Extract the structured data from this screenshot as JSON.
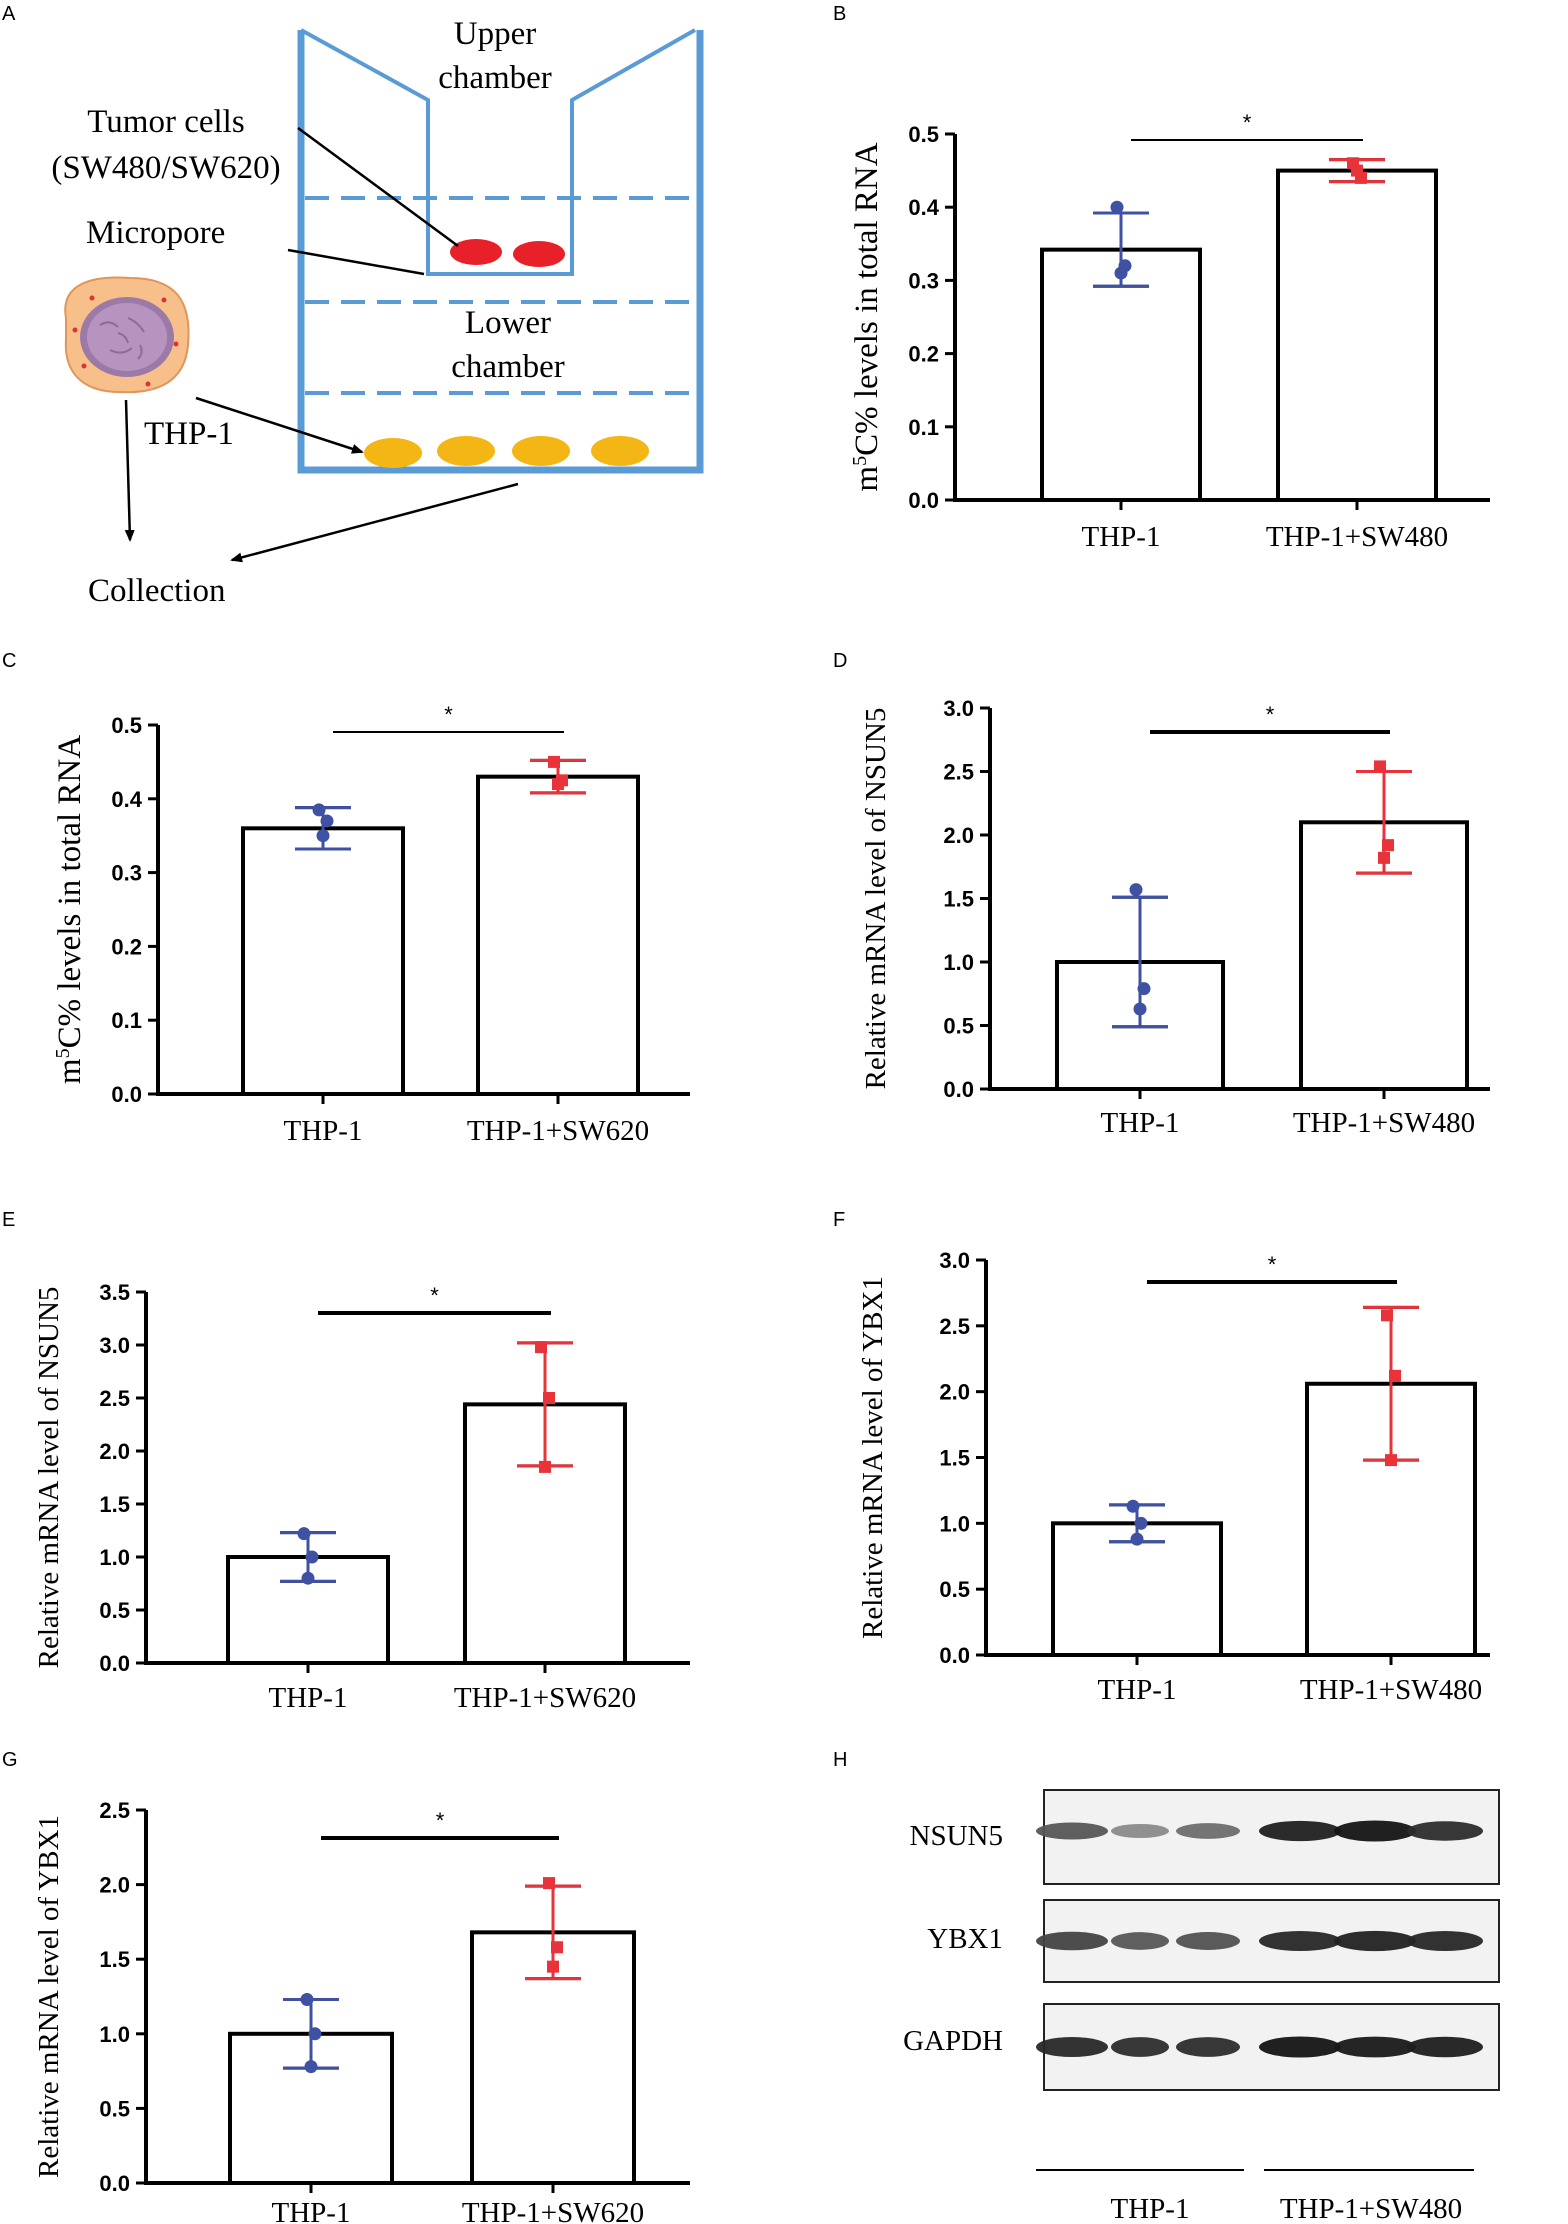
{
  "panels": {
    "A": "A",
    "B": "B",
    "C": "C",
    "D": "D",
    "E": "E",
    "F": "F",
    "G": "G",
    "H": "H"
  },
  "diagram": {
    "upper_chamber": [
      "Upper",
      "chamber"
    ],
    "lower_chamber": [
      "Lower",
      "chamber"
    ],
    "tumor_cells": [
      "Tumor cells",
      "(SW480/SW620)"
    ],
    "micropore": "Micropore",
    "thp1": "THP-1",
    "collection": "Collection",
    "colors": {
      "chamber": "#5b9bd5",
      "tumor": "#e8202a",
      "macrophage": "#f4b614"
    }
  },
  "colors": {
    "thp1_points": "#3f51a3",
    "co_points": "#e8333a"
  },
  "chart_data": [
    {
      "id": "B",
      "type": "bar",
      "ylabel_prefix": "m",
      "ylabel_sup": "5",
      "ylabel_suffix": "C% levels in total RNA",
      "categories": [
        "THP-1",
        "THP-1+SW480"
      ],
      "values": [
        0.342,
        0.45
      ],
      "error": [
        0.05,
        0.015
      ],
      "points": [
        [
          0.4,
          0.32,
          0.31
        ],
        [
          0.46,
          0.44,
          0.45
        ]
      ],
      "ylim": [
        0,
        0.5
      ],
      "yticks": [
        "0.0",
        "0.1",
        "0.2",
        "0.3",
        "0.4",
        "0.5"
      ],
      "significance": "*"
    },
    {
      "id": "C",
      "type": "bar",
      "ylabel_prefix": "m",
      "ylabel_sup": "5",
      "ylabel_suffix": "C% levels in total RNA",
      "categories": [
        "THP-1",
        "THP-1+SW620"
      ],
      "values": [
        0.36,
        0.43
      ],
      "error": [
        0.028,
        0.022
      ],
      "points": [
        [
          0.385,
          0.37,
          0.35
        ],
        [
          0.45,
          0.425,
          0.42
        ]
      ],
      "ylim": [
        0,
        0.5
      ],
      "yticks": [
        "0.0",
        "0.1",
        "0.2",
        "0.3",
        "0.4",
        "0.5"
      ],
      "significance": "*"
    },
    {
      "id": "D",
      "type": "bar",
      "ylabel": "Relative mRNA level of  NSUN5",
      "categories": [
        "THP-1",
        "THP-1+SW480"
      ],
      "values": [
        1.0,
        2.1
      ],
      "error": [
        0.51,
        0.4
      ],
      "points": [
        [
          1.57,
          0.79,
          0.63
        ],
        [
          2.54,
          1.92,
          1.82
        ]
      ],
      "ylim": [
        0,
        3.0
      ],
      "yticks": [
        "0.0",
        "0.5",
        "1.0",
        "1.5",
        "2.0",
        "2.5",
        "3.0"
      ],
      "significance": "*"
    },
    {
      "id": "E",
      "type": "bar",
      "ylabel": "Relative mRNA level of  NSUN5",
      "categories": [
        "THP-1",
        "THP-1+SW620"
      ],
      "values": [
        1.0,
        2.44
      ],
      "error": [
        0.23,
        0.58
      ],
      "points": [
        [
          1.22,
          1.0,
          0.8
        ],
        [
          2.98,
          2.5,
          1.85
        ]
      ],
      "ylim": [
        0,
        3.5
      ],
      "yticks": [
        "0.0",
        "0.5",
        "1.0",
        "1.5",
        "2.0",
        "2.5",
        "3.0",
        "3.5"
      ],
      "significance": "*"
    },
    {
      "id": "F",
      "type": "bar",
      "ylabel": "Relative mRNA level of  YBX1",
      "categories": [
        "THP-1",
        "THP-1+SW480"
      ],
      "values": [
        1.0,
        2.06
      ],
      "error": [
        0.14,
        0.58
      ],
      "points": [
        [
          1.13,
          1.0,
          0.88
        ],
        [
          2.58,
          2.12,
          1.48
        ]
      ],
      "ylim": [
        0,
        3.0
      ],
      "yticks": [
        "0.0",
        "0.5",
        "1.0",
        "1.5",
        "2.0",
        "2.5",
        "3.0"
      ],
      "significance": "*"
    },
    {
      "id": "G",
      "type": "bar",
      "ylabel": "Relative mRNA level of  YBX1",
      "categories": [
        "THP-1",
        "THP-1+SW620"
      ],
      "values": [
        1.0,
        1.68
      ],
      "error": [
        0.23,
        0.31
      ],
      "points": [
        [
          1.23,
          1.0,
          0.78
        ],
        [
          2.01,
          1.58,
          1.45
        ]
      ],
      "ylim": [
        0,
        2.5
      ],
      "yticks": [
        "0.0",
        "0.5",
        "1.0",
        "1.5",
        "2.0",
        "2.5"
      ],
      "significance": "*"
    }
  ],
  "blot": {
    "rows": [
      {
        "label": "NSUN5",
        "intensity": [
          0.72,
          0.5,
          0.62,
          0.95,
          1.0,
          0.9
        ]
      },
      {
        "label": "YBX1",
        "intensity": [
          0.8,
          0.72,
          0.74,
          0.92,
          0.94,
          0.92
        ]
      },
      {
        "label": "GAPDH",
        "intensity": [
          0.92,
          0.9,
          0.9,
          1.0,
          0.98,
          0.96
        ]
      }
    ],
    "groups": [
      "THP-1",
      "THP-1+SW480"
    ]
  }
}
